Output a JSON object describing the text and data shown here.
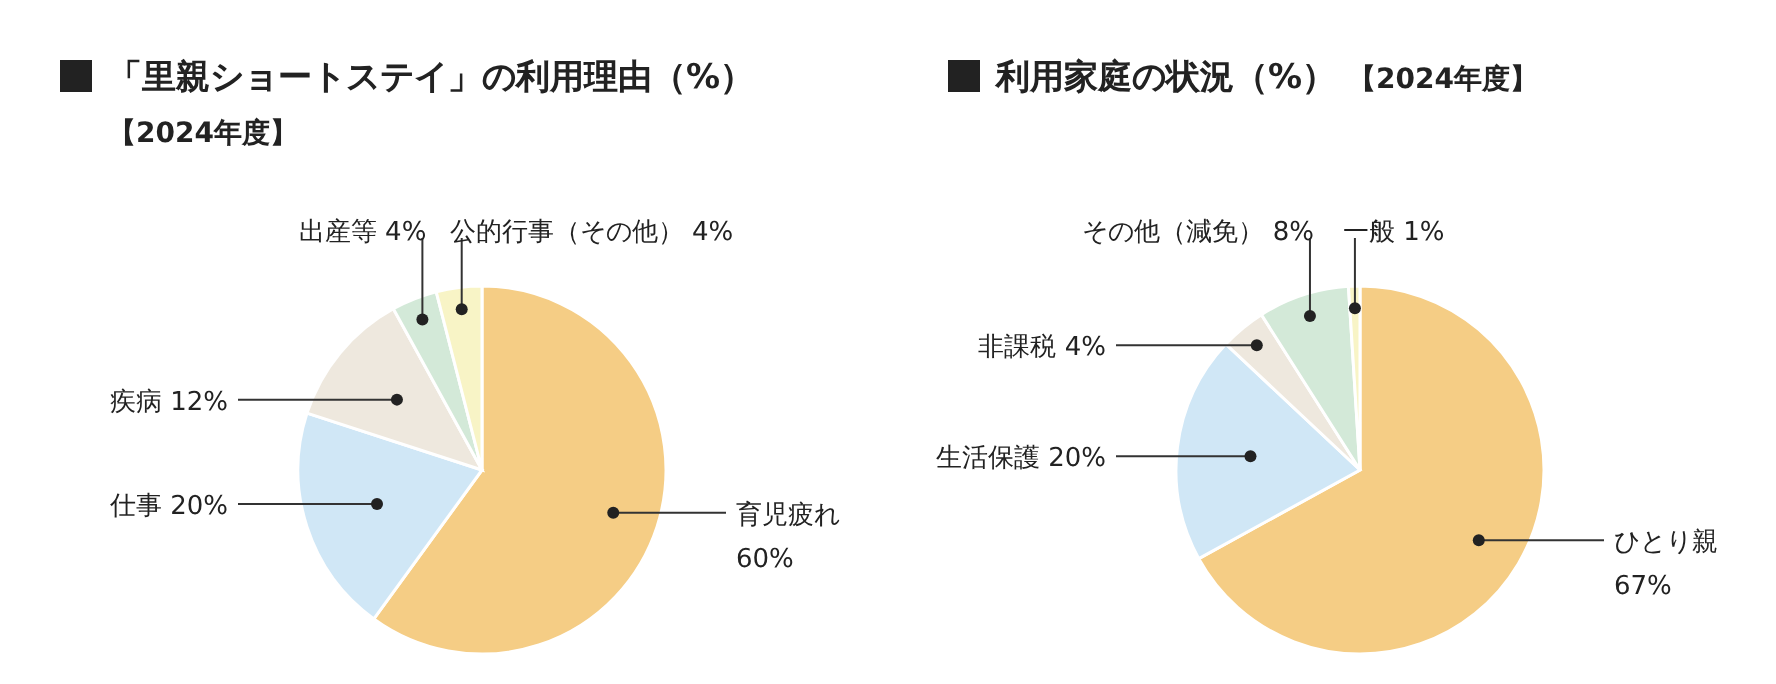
{
  "chart_data": [
    {
      "type": "pie",
      "title": "「里親ショートステイ」の利用理由（%）",
      "subtitle": "【2024年度】",
      "categories": [
        "育児疲れ",
        "仕事",
        "疾病",
        "出産等",
        "公的行事（その他）"
      ],
      "values": [
        60,
        20,
        12,
        4,
        4
      ],
      "value_labels": [
        "60%",
        "20%",
        "12%",
        "4%",
        "4%"
      ],
      "colors": [
        "#f5cd85",
        "#d0e7f6",
        "#eee8de",
        "#d3e9d8",
        "#f8f4c6"
      ]
    },
    {
      "type": "pie",
      "title": "利用家庭の状況（%）",
      "subtitle": "【2024年度】",
      "categories": [
        "ひとり親",
        "生活保護",
        "非課税",
        "その他（減免）",
        "一般"
      ],
      "values": [
        67,
        20,
        4,
        8,
        1
      ],
      "value_labels": [
        "67%",
        "20%",
        "4%",
        "8%",
        "1%"
      ],
      "colors": [
        "#f5cd85",
        "#d0e7f6",
        "#eee8de",
        "#d3e9d8",
        "#f8f4c6"
      ]
    }
  ]
}
